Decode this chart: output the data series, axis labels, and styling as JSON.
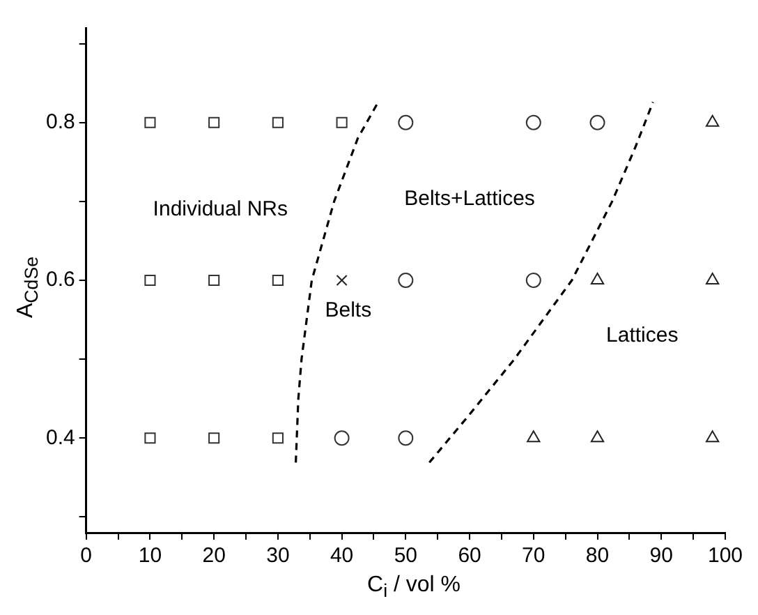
{
  "chart_data": {
    "type": "scatter",
    "xlabel": "C$_{i}$ / vol %",
    "ylabel": "A$_{CdSe}$",
    "xlim": [
      0,
      100
    ],
    "ylim": [
      0.28,
      0.92
    ],
    "xticks": [
      0,
      {
        "value": 5,
        "label": null
      },
      10,
      {
        "value": 15,
        "label": null
      },
      20,
      {
        "value": 25,
        "label": null
      },
      30,
      {
        "value": 35,
        "label": null
      },
      40,
      {
        "value": 45,
        "label": null
      },
      50,
      {
        "value": 55,
        "label": null
      },
      60,
      {
        "value": 65,
        "label": null
      },
      70,
      {
        "value": 75,
        "label": null
      },
      80,
      {
        "value": 85,
        "label": null
      },
      90,
      {
        "value": 95,
        "label": null
      },
      100
    ],
    "yticks": [
      {
        "value": 0.3,
        "label": null
      },
      0.4,
      {
        "value": 0.5,
        "label": null
      },
      0.6,
      {
        "value": 0.7,
        "label": null
      },
      0.8,
      {
        "value": 0.9,
        "label": null
      }
    ],
    "grid": false,
    "legend": false,
    "series": [
      {
        "type": "scatter",
        "marker": "square",
        "color": "#333333",
        "x": [
          10,
          20,
          30,
          40,
          10,
          20,
          30,
          10,
          20,
          30
        ],
        "values": [
          0.8,
          0.8,
          0.8,
          0.8,
          0.6,
          0.6,
          0.6,
          0.4,
          0.4,
          0.4
        ]
      },
      {
        "type": "scatter",
        "marker": "circle",
        "color": "#333333",
        "x": [
          50,
          70,
          80,
          50,
          70,
          40,
          50
        ],
        "values": [
          0.8,
          0.8,
          0.8,
          0.6,
          0.6,
          0.4,
          0.4
        ]
      },
      {
        "type": "scatter",
        "marker": "cross",
        "color": "#222222",
        "x": [
          40
        ],
        "values": [
          0.6
        ]
      },
      {
        "type": "scatter",
        "marker": "triangle",
        "color": "#222222",
        "x": [
          98,
          80,
          98,
          70,
          80,
          98
        ],
        "values": [
          0.8,
          0.6,
          0.6,
          0.4,
          0.4,
          0.4
        ]
      },
      {
        "type": "line",
        "marker": "none",
        "line_style": "dashed",
        "color": "#000000",
        "x": [
          32.8,
          33.2,
          33.7,
          35.3,
          38.8,
          42.5,
          45.7
        ],
        "values": [
          0.369,
          0.45,
          0.5,
          0.6,
          0.7,
          0.78,
          0.826
        ]
      },
      {
        "type": "line",
        "marker": "none",
        "line_style": "dashed",
        "color": "#000000",
        "x": [
          53.7,
          60,
          67,
          76,
          82.3,
          86,
          88.7
        ],
        "values": [
          0.369,
          0.43,
          0.5,
          0.6,
          0.7,
          0.77,
          0.826
        ]
      }
    ],
    "annotations": [
      "Individual NRs",
      "Belts+Lattices",
      "Belts",
      "Lattices"
    ]
  }
}
